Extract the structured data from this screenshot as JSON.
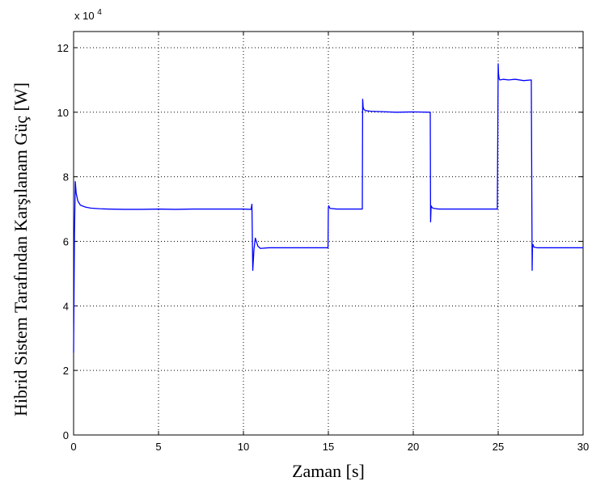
{
  "chart_data": {
    "type": "line",
    "title": "",
    "xlabel": "Zaman [s]",
    "ylabel": "Hibrid Sistem Tarafından Karşılanam Güç [W]",
    "xlim": [
      0,
      30
    ],
    "ylim": [
      0,
      125000
    ],
    "y_multiplier_label": "x 10",
    "y_multiplier_exponent": "4",
    "x_ticks": [
      "0",
      "5",
      "10",
      "15",
      "20",
      "25",
      "30"
    ],
    "y_ticks": [
      "0",
      "2",
      "4",
      "6",
      "8",
      "10",
      "12"
    ],
    "grid": true,
    "grid_style": "dotted",
    "legend": "none",
    "series": [
      {
        "color": "#0000ff",
        "x": [
          0,
          0.05,
          0.1,
          0.15,
          0.25,
          0.4,
          0.7,
          1.0,
          1.5,
          2.0,
          3.0,
          4.0,
          5.0,
          6.0,
          7.0,
          8.0,
          9.0,
          10.0,
          10.45,
          10.5,
          10.55,
          10.62,
          10.7,
          10.85,
          11.0,
          11.5,
          12.0,
          13.0,
          14.0,
          14.98,
          15.0,
          15.02,
          15.1,
          15.5,
          16.0,
          16.5,
          17.0,
          17.02,
          17.05,
          17.1,
          17.2,
          17.5,
          18.0,
          19.0,
          20.0,
          21.0,
          21.02,
          21.05,
          21.1,
          21.2,
          21.5,
          22.0,
          23.0,
          24.0,
          24.95,
          25.0,
          25.02,
          25.05,
          25.1,
          25.3,
          25.6,
          26.0,
          26.5,
          26.95,
          27.0,
          27.02,
          27.05,
          27.1,
          27.3,
          27.6,
          28.0,
          29.0,
          30.0
        ],
        "y": [
          25500,
          62000,
          78500,
          75000,
          72500,
          71200,
          70600,
          70300,
          70100,
          70000,
          69900,
          69900,
          70000,
          69900,
          70000,
          70000,
          70000,
          70000,
          69900,
          71500,
          51000,
          57500,
          61000,
          58500,
          57800,
          58000,
          58000,
          58000,
          58000,
          58000,
          70500,
          71000,
          70200,
          70000,
          70000,
          70000,
          70000,
          104000,
          101500,
          100800,
          100500,
          100300,
          100200,
          100000,
          100100,
          100000,
          66000,
          71000,
          70500,
          70200,
          70000,
          70000,
          70000,
          70000,
          70000,
          115000,
          112000,
          110500,
          110000,
          110200,
          110000,
          110200,
          109800,
          110000,
          51000,
          58500,
          59000,
          58200,
          58000,
          58000,
          58000,
          58000,
          58000
        ]
      }
    ]
  }
}
